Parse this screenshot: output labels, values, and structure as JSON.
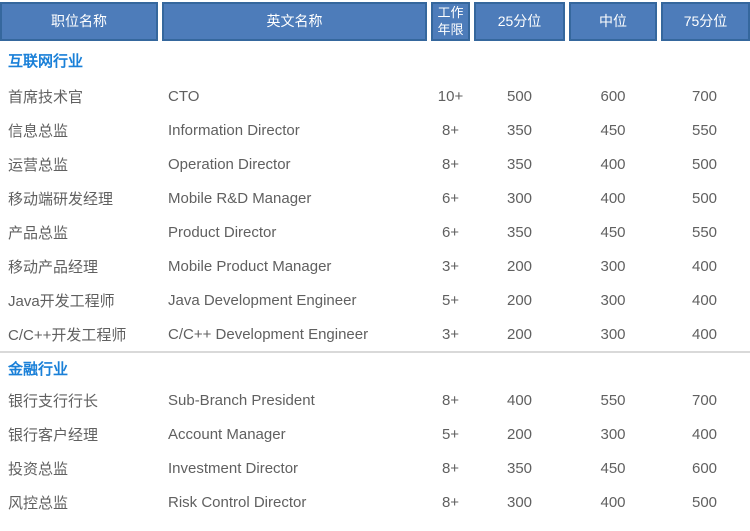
{
  "table": {
    "headers": [
      {
        "label": "职位名称"
      },
      {
        "label": "英文名称"
      },
      {
        "label": "工作年限"
      },
      {
        "label": "25分位"
      },
      {
        "label": "中位"
      },
      {
        "label": "75分位"
      }
    ],
    "sections": [
      {
        "title": "互联网行业",
        "rows": [
          [
            "首席技术官",
            "CTO",
            "10+",
            "500",
            "600",
            "700"
          ],
          [
            "信息总监",
            "Information Director",
            "8+",
            "350",
            "450",
            "550"
          ],
          [
            "运营总监",
            "Operation Director",
            "8+",
            "350",
            "400",
            "500"
          ],
          [
            "移动端研发经理",
            "Mobile R&D Manager",
            "6+",
            "300",
            "400",
            "500"
          ],
          [
            "产品总监",
            "Product Director",
            "6+",
            "350",
            "450",
            "550"
          ],
          [
            "移动产品经理",
            "Mobile Product Manager",
            "3+",
            "200",
            "300",
            "400"
          ],
          [
            "Java开发工程师",
            "Java Development Engineer",
            "5+",
            "200",
            "300",
            "400"
          ],
          [
            "C/C++开发工程师",
            "C/C++ Development Engineer",
            "3+",
            "200",
            "300",
            "400"
          ]
        ]
      },
      {
        "title": "金融行业",
        "rows": [
          [
            "银行支行行长",
            "Sub-Branch President",
            "8+",
            "400",
            "550",
            "700"
          ],
          [
            "银行客户经理",
            "Account Manager",
            "5+",
            "200",
            "300",
            "400"
          ],
          [
            "投资总监",
            "Investment Director",
            "8+",
            "350",
            "450",
            "600"
          ],
          [
            "风控总监",
            "Risk Control Director",
            "8+",
            "300",
            "400",
            "500"
          ]
        ]
      }
    ]
  },
  "colors": {
    "header_bg": "#4d7cba",
    "header_border": "#35679d",
    "header_text": "#ffffff",
    "section_title": "#1a80d8",
    "body_text": "#606060",
    "separator": "#d9d9d9"
  }
}
